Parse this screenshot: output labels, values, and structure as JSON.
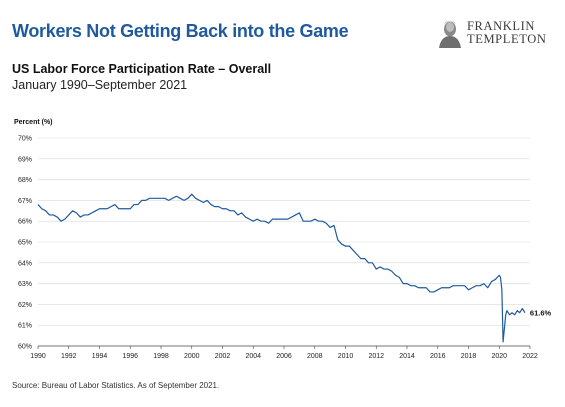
{
  "header": {
    "title": "Workers Not Getting Back into the Game",
    "logo_line1": "FRANKLIN",
    "logo_line2": "TEMPLETON"
  },
  "chart_data": {
    "type": "line",
    "title": "US Labor Force Participation Rate – Overall",
    "subtitle": "January 1990–September 2021",
    "ylabel": "Percent (%)",
    "xlabel": "",
    "xlim": [
      1990,
      2022
    ],
    "ylim": [
      60,
      70
    ],
    "x_ticks": [
      1990,
      1992,
      1994,
      1996,
      1998,
      2000,
      2002,
      2004,
      2006,
      2008,
      2010,
      2012,
      2014,
      2016,
      2018,
      2020,
      2022
    ],
    "y_ticks": [
      60,
      61,
      62,
      63,
      64,
      65,
      66,
      67,
      68,
      69,
      70
    ],
    "y_tick_suffix": "%",
    "grid": true,
    "line_color": "#1f5a9e",
    "end_label": "61.6%",
    "series": [
      {
        "x": [
          1990.0,
          1990.25,
          1990.5,
          1990.75,
          1991.0,
          1991.25,
          1991.5,
          1991.75,
          1992.0,
          1992.25,
          1992.5,
          1992.75,
          1993.0,
          1993.25,
          1993.5,
          1993.75,
          1994.0,
          1994.25,
          1994.5,
          1994.75,
          1995.0,
          1995.25,
          1995.5,
          1995.75,
          1996.0,
          1996.25,
          1996.5,
          1996.75,
          1997.0,
          1997.25,
          1997.5,
          1997.75,
          1998.0,
          1998.25,
          1998.5,
          1998.75,
          1999.0,
          1999.25,
          1999.5,
          1999.75,
          2000.0,
          2000.25,
          2000.5,
          2000.75,
          2001.0,
          2001.25,
          2001.5,
          2001.75,
          2002.0,
          2002.25,
          2002.5,
          2002.75,
          2003.0,
          2003.25,
          2003.5,
          2003.75,
          2004.0,
          2004.25,
          2004.5,
          2004.75,
          2005.0,
          2005.25,
          2005.5,
          2005.75,
          2006.0,
          2006.25,
          2006.5,
          2006.75,
          2007.0,
          2007.25,
          2007.5,
          2007.75,
          2008.0,
          2008.25,
          2008.5,
          2008.75,
          2009.0,
          2009.25,
          2009.5,
          2009.75,
          2010.0,
          2010.25,
          2010.5,
          2010.75,
          2011.0,
          2011.25,
          2011.5,
          2011.75,
          2012.0,
          2012.25,
          2012.5,
          2012.75,
          2013.0,
          2013.25,
          2013.5,
          2013.75,
          2014.0,
          2014.25,
          2014.5,
          2014.75,
          2015.0,
          2015.25,
          2015.5,
          2015.75,
          2016.0,
          2016.25,
          2016.5,
          2016.75,
          2017.0,
          2017.25,
          2017.5,
          2017.75,
          2018.0,
          2018.25,
          2018.5,
          2018.75,
          2019.0,
          2019.25,
          2019.5,
          2019.75,
          2020.0,
          2020.08,
          2020.17,
          2020.25,
          2020.33,
          2020.42,
          2020.5,
          2020.67,
          2020.83,
          2021.0,
          2021.17,
          2021.33,
          2021.5,
          2021.67
        ],
        "values": [
          66.8,
          66.6,
          66.5,
          66.3,
          66.3,
          66.2,
          66.0,
          66.1,
          66.3,
          66.5,
          66.4,
          66.2,
          66.3,
          66.3,
          66.4,
          66.5,
          66.6,
          66.6,
          66.6,
          66.7,
          66.8,
          66.6,
          66.6,
          66.6,
          66.6,
          66.8,
          66.8,
          67.0,
          67.0,
          67.1,
          67.1,
          67.1,
          67.1,
          67.1,
          67.0,
          67.1,
          67.2,
          67.1,
          67.0,
          67.1,
          67.3,
          67.1,
          67.0,
          66.9,
          67.0,
          66.8,
          66.7,
          66.7,
          66.6,
          66.6,
          66.5,
          66.5,
          66.3,
          66.4,
          66.2,
          66.1,
          66.0,
          66.1,
          66.0,
          66.0,
          65.9,
          66.1,
          66.1,
          66.1,
          66.1,
          66.1,
          66.2,
          66.3,
          66.4,
          66.0,
          66.0,
          66.0,
          66.1,
          66.0,
          66.0,
          65.9,
          65.7,
          65.8,
          65.1,
          64.9,
          64.8,
          64.8,
          64.6,
          64.4,
          64.2,
          64.2,
          64.0,
          64.0,
          63.7,
          63.8,
          63.7,
          63.7,
          63.6,
          63.4,
          63.3,
          63.0,
          63.0,
          62.9,
          62.9,
          62.8,
          62.8,
          62.8,
          62.6,
          62.6,
          62.7,
          62.8,
          62.8,
          62.8,
          62.9,
          62.9,
          62.9,
          62.9,
          62.7,
          62.8,
          62.9,
          62.9,
          63.0,
          62.8,
          63.1,
          63.2,
          63.4,
          63.3,
          62.7,
          60.2,
          60.8,
          61.5,
          61.7,
          61.5,
          61.6,
          61.5,
          61.7,
          61.6,
          61.8,
          61.6
        ]
      }
    ]
  },
  "footer": {
    "source": "Source: Bureau of Labor Statistics. As of September 2021."
  }
}
